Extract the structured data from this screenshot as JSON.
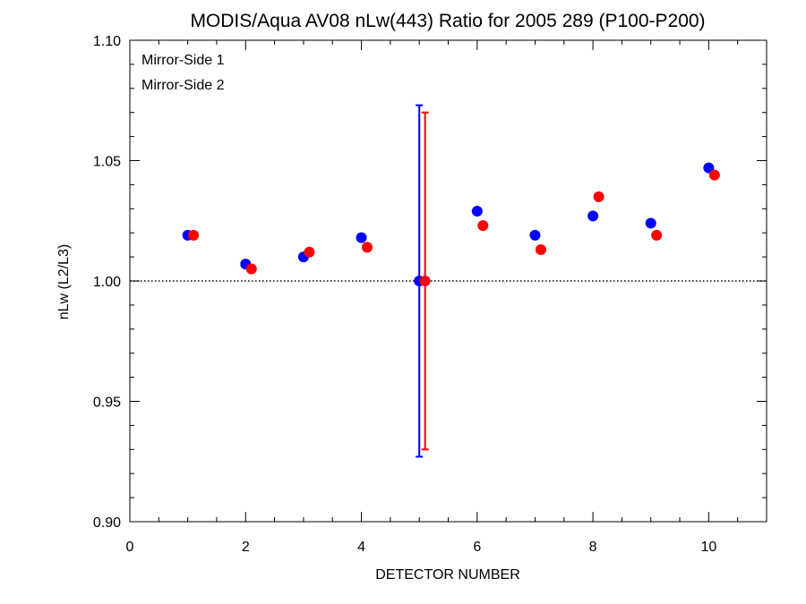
{
  "chart_data": {
    "type": "scatter",
    "title": "MODIS/Aqua AV08 nLw(443) Ratio for 2005 289 (P100-P200)",
    "xlabel": "DETECTOR NUMBER",
    "ylabel": "nLw (L2/L3)",
    "xlim": [
      0,
      11
    ],
    "ylim": [
      0.9,
      1.1
    ],
    "x_ticks": [
      0,
      2,
      4,
      6,
      8,
      10
    ],
    "x_tick_labels": [
      "0",
      "2",
      "4",
      "6",
      "8",
      "10"
    ],
    "y_ticks": [
      0.9,
      0.95,
      1.0,
      1.05,
      1.1
    ],
    "y_tick_labels": [
      "0.90",
      "0.95",
      "1.00",
      "1.05",
      "1.10"
    ],
    "reference_line": {
      "y": 1.0,
      "style": "dotted"
    },
    "legend_position": "top-left",
    "series": [
      {
        "name": "Mirror-Side 1",
        "color": "#0000ff",
        "x": [
          1,
          2,
          3,
          4,
          5,
          6,
          7,
          8,
          9,
          10
        ],
        "y": [
          1.019,
          1.007,
          1.01,
          1.018,
          1.0,
          1.029,
          1.019,
          1.027,
          1.024,
          1.047
        ],
        "error_bars": [
          {
            "x": 5,
            "low": 0.927,
            "high": 1.073
          }
        ]
      },
      {
        "name": "Mirror-Side 2",
        "color": "#ff0000",
        "x": [
          1.1,
          2.1,
          3.1,
          4.1,
          5.1,
          6.1,
          7.1,
          8.1,
          9.1,
          10.1
        ],
        "y": [
          1.019,
          1.005,
          1.012,
          1.014,
          1.0,
          1.023,
          1.013,
          1.035,
          1.019,
          1.044
        ],
        "error_bars": [
          {
            "x": 5.1,
            "low": 0.93,
            "high": 1.07
          }
        ]
      }
    ]
  }
}
